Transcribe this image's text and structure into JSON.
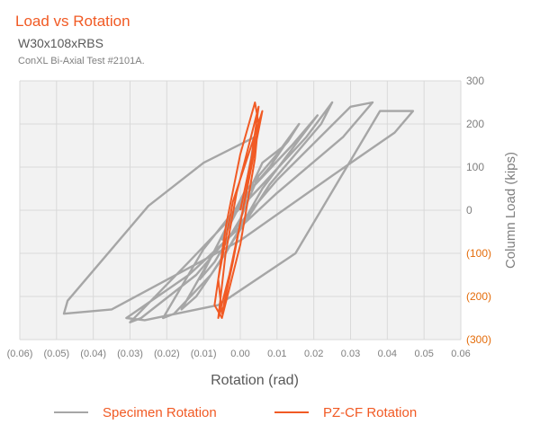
{
  "chart_data": {
    "type": "line",
    "title": "Load vs Rotation",
    "subtitle": "W30x108xRBS",
    "caption": "ConXL Bi-Axial Test #2101A.",
    "xlabel": "Rotation (rad)",
    "ylabel": "Column Load (kips)",
    "xlim": [
      -0.06,
      0.06
    ],
    "ylim": [
      -300,
      300
    ],
    "x_ticks": [
      -0.06,
      -0.05,
      -0.04,
      -0.03,
      -0.02,
      -0.01,
      0.0,
      0.01,
      0.02,
      0.03,
      0.04,
      0.05,
      0.06
    ],
    "x_tick_labels": [
      "(0.06)",
      "(0.05)",
      "(0.04)",
      "(0.03)",
      "(0.02)",
      "(0.01)",
      "0.00",
      "0.01",
      "0.02",
      "0.03",
      "0.04",
      "0.05",
      "0.06"
    ],
    "y_ticks": [
      300,
      200,
      100,
      0,
      -100,
      -200,
      -300
    ],
    "y_tick_labels": [
      "300",
      "200",
      "100",
      "0",
      "(100)",
      "(200)",
      "(300)"
    ],
    "grid": true,
    "legend_position": "bottom",
    "colors": {
      "specimen": "#a6a6a6",
      "pzcf": "#f15a24",
      "title": "#f15a24",
      "negative_tick": "#e46c0a",
      "positive_tick": "#7f7f7f",
      "plot_background": "#f2f2f2",
      "grid": "#d9d9d9"
    },
    "series": [
      {
        "name": "Specimen Rotation",
        "color": "#a6a6a6",
        "x": [
          0.0,
          0.006,
          0.012,
          0.008,
          0.002,
          -0.005,
          -0.011,
          -0.007,
          0.0,
          0.005,
          0.013,
          0.016,
          0.01,
          0.001,
          -0.008,
          -0.016,
          -0.012,
          -0.004,
          0.006,
          0.017,
          0.021,
          0.014,
          0.003,
          -0.01,
          -0.021,
          -0.018,
          -0.008,
          0.008,
          0.022,
          0.025,
          0.018,
          0.005,
          -0.014,
          -0.03,
          -0.027,
          -0.012,
          0.01,
          0.03,
          0.036,
          0.028,
          0.01,
          -0.014,
          -0.031,
          -0.026,
          -0.006,
          0.015,
          0.038,
          0.047,
          0.042,
          0.025,
          0.0,
          -0.035,
          -0.048,
          -0.047,
          -0.025,
          -0.01,
          0.004,
          0.001,
          -0.005
        ],
        "y": [
          0,
          110,
          150,
          100,
          40,
          -60,
          -160,
          -120,
          -20,
          80,
          160,
          200,
          130,
          40,
          -110,
          -230,
          -200,
          -100,
          50,
          175,
          220,
          150,
          50,
          -90,
          -250,
          -240,
          -150,
          60,
          200,
          250,
          170,
          50,
          -120,
          -260,
          -250,
          -150,
          70,
          240,
          250,
          170,
          40,
          -150,
          -250,
          -255,
          -220,
          -100,
          230,
          230,
          180,
          80,
          -70,
          -230,
          -240,
          -210,
          10,
          110,
          170,
          30,
          -70
        ]
      },
      {
        "name": "PZ-CF Rotation",
        "color": "#f15a24",
        "x": [
          0.0,
          0.003,
          0.005,
          0.002,
          -0.001,
          -0.004,
          -0.006,
          -0.003,
          0.0,
          0.003,
          0.006,
          0.003,
          -0.002,
          -0.006,
          -0.005,
          -0.002,
          0.002,
          0.005,
          0.004,
          0.0,
          -0.004,
          -0.007,
          -0.005,
          0.0,
          0.004,
          0.005
        ],
        "y": [
          0,
          120,
          240,
          140,
          40,
          -100,
          -250,
          -150,
          -30,
          100,
          230,
          150,
          20,
          -160,
          -240,
          -120,
          60,
          200,
          250,
          130,
          -40,
          -220,
          -250,
          -80,
          120,
          210
        ]
      }
    ]
  }
}
